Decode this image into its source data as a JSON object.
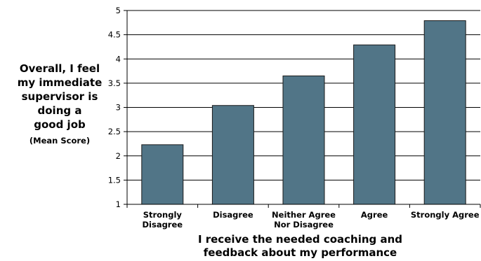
{
  "chart_data": {
    "type": "bar",
    "categories": [
      [
        "Strongly",
        "Disagree"
      ],
      [
        "Disagree"
      ],
      [
        "Neither Agree",
        "Nor Disagree"
      ],
      [
        "Agree"
      ],
      [
        "Strongly Agree"
      ]
    ],
    "values": [
      2.23,
      3.04,
      3.65,
      4.29,
      4.79
    ],
    "ylabel_lines": [
      "Overall, I feel",
      "my immediate",
      "supervisor is",
      "doing a",
      "good job"
    ],
    "ylabel_sub": "(Mean Score)",
    "xlabel_lines": [
      "I receive the needed coaching and",
      "feedback about my performance"
    ],
    "ylim": [
      1,
      5
    ],
    "yticks": [
      "1",
      "1.5",
      "2",
      "2.5",
      "3",
      "3.5",
      "4",
      "4.5",
      "5"
    ],
    "grid": true,
    "bar_color": "#517587",
    "legend": "none"
  }
}
